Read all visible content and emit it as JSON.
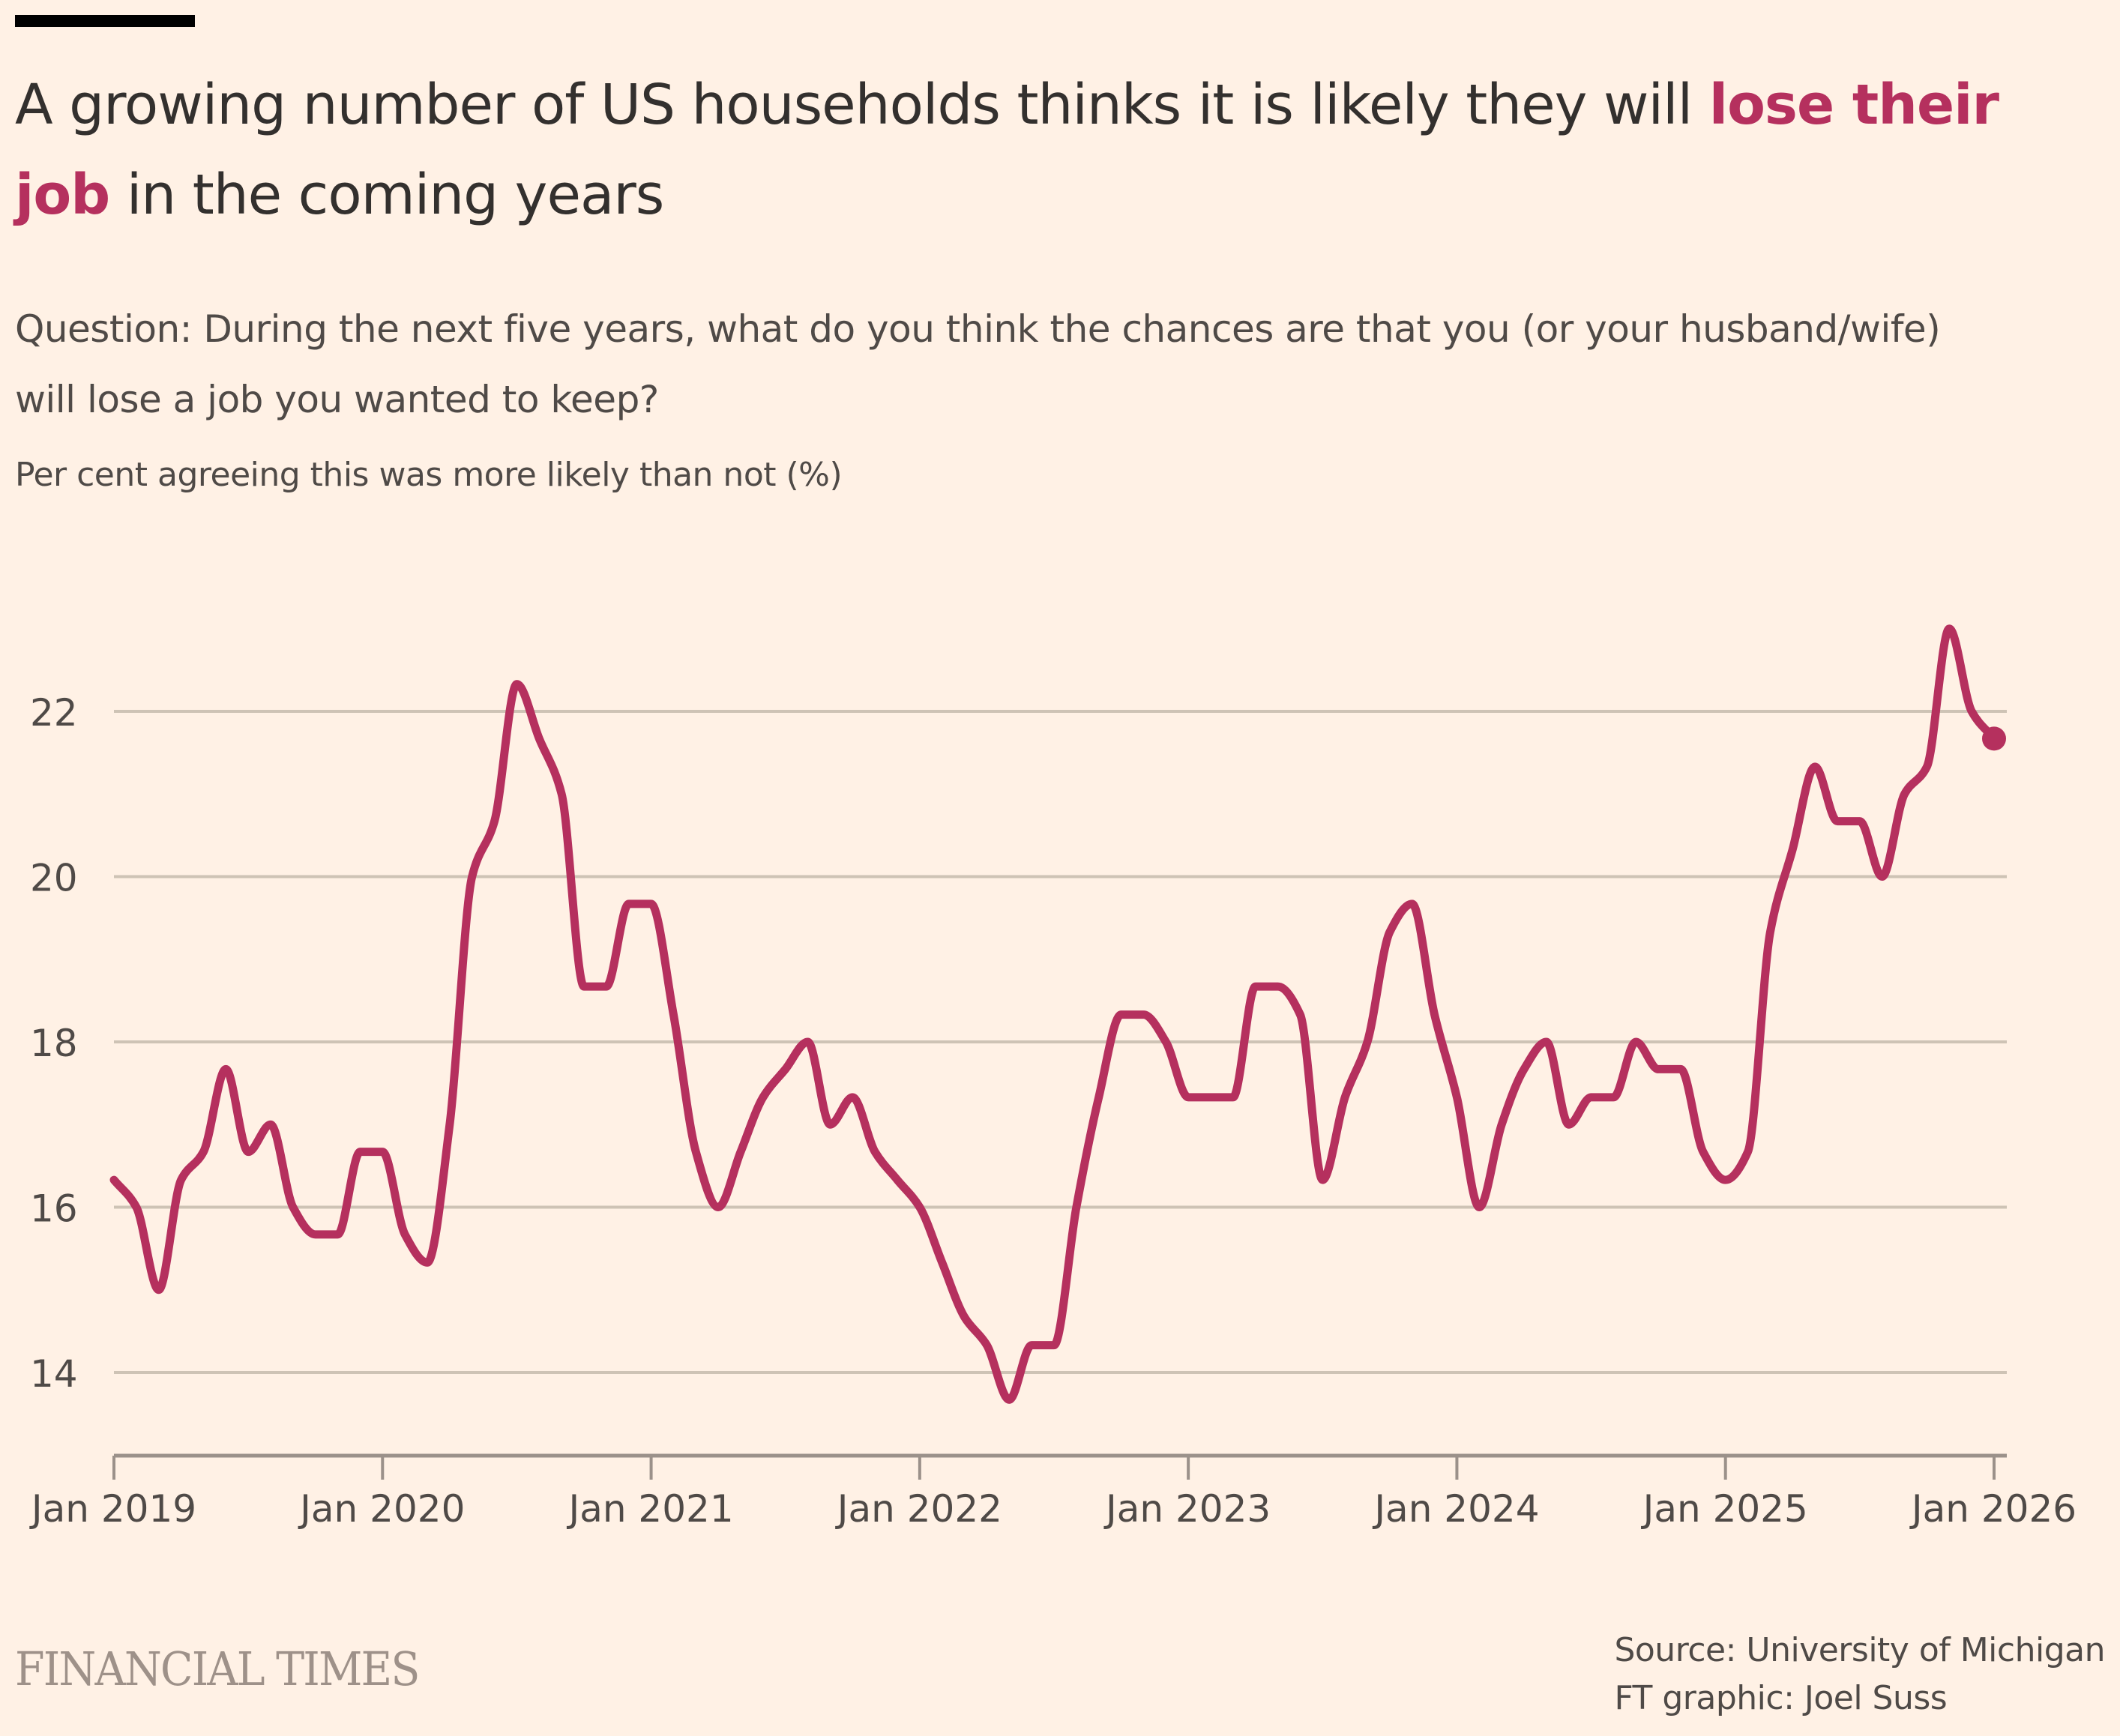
{
  "header": {
    "title_prefix": "A growing number of US households thinks it is likely they will ",
    "title_highlight": "lose their job",
    "title_suffix": " in the coming years",
    "subtitle": "Question: During the next five years, what do you think the chances are that you (or your husband/wife) will lose a job you wanted to keep?",
    "unit_label": "Per cent agreeing this was more likely than not (%)"
  },
  "colors": {
    "background": "#fff1e5",
    "series": "#b5305e",
    "gridline": "#cec3b5",
    "axis": "#9b918a",
    "text": "#33302e"
  },
  "footer": {
    "logo": "FINANCIAL TIMES",
    "source": "Source: University of Michigan",
    "credit": "FT graphic: Joel Suss"
  },
  "chart_data": {
    "type": "line",
    "title": "A growing number of US households thinks it is likely they will lose their job in the coming years",
    "subtitle": "Question: During the next five years, what do you think the chances are that you (or your husband/wife) will lose a job you wanted to keep?",
    "ylabel": "Per cent agreeing this was more likely than not (%)",
    "xlabel": "",
    "x_start": "2019-01",
    "x_end": "2026-01",
    "x_interval": "month",
    "xticks": [
      "Jan 2019",
      "Jan 2020",
      "Jan 2021",
      "Jan 2022",
      "Jan 2023",
      "Jan 2024",
      "Jan 2025",
      "Jan 2026"
    ],
    "yticks": [
      14,
      16,
      18,
      20,
      22
    ],
    "ylim": [
      13,
      23.3
    ],
    "grid": true,
    "legend": "none",
    "end_marker": true,
    "series": [
      {
        "name": "Households expecting job loss (%)",
        "values": [
          16.33,
          16.0,
          15.0,
          16.33,
          16.67,
          17.67,
          16.67,
          17.0,
          16.0,
          15.67,
          15.67,
          16.67,
          16.67,
          15.67,
          15.33,
          17.0,
          20.0,
          20.67,
          22.33,
          21.67,
          21.0,
          18.67,
          18.67,
          19.67,
          19.67,
          18.33,
          16.67,
          16.0,
          16.67,
          17.33,
          17.67,
          18.0,
          17.0,
          17.33,
          16.67,
          16.33,
          16.0,
          15.33,
          14.67,
          14.33,
          13.67,
          14.33,
          14.33,
          16.0,
          17.33,
          18.33,
          18.33,
          18.0,
          17.33,
          17.33,
          17.33,
          18.67,
          18.67,
          18.33,
          16.33,
          17.33,
          18.0,
          19.33,
          19.67,
          18.33,
          17.33,
          16.0,
          17.0,
          17.67,
          18.0,
          17.0,
          17.33,
          17.33,
          18.0,
          17.67,
          17.67,
          16.67,
          16.33,
          16.67,
          19.33,
          20.33,
          21.33,
          20.67,
          20.67,
          20.0,
          21.0,
          21.33,
          23.0,
          22.0,
          21.67
        ]
      }
    ]
  }
}
